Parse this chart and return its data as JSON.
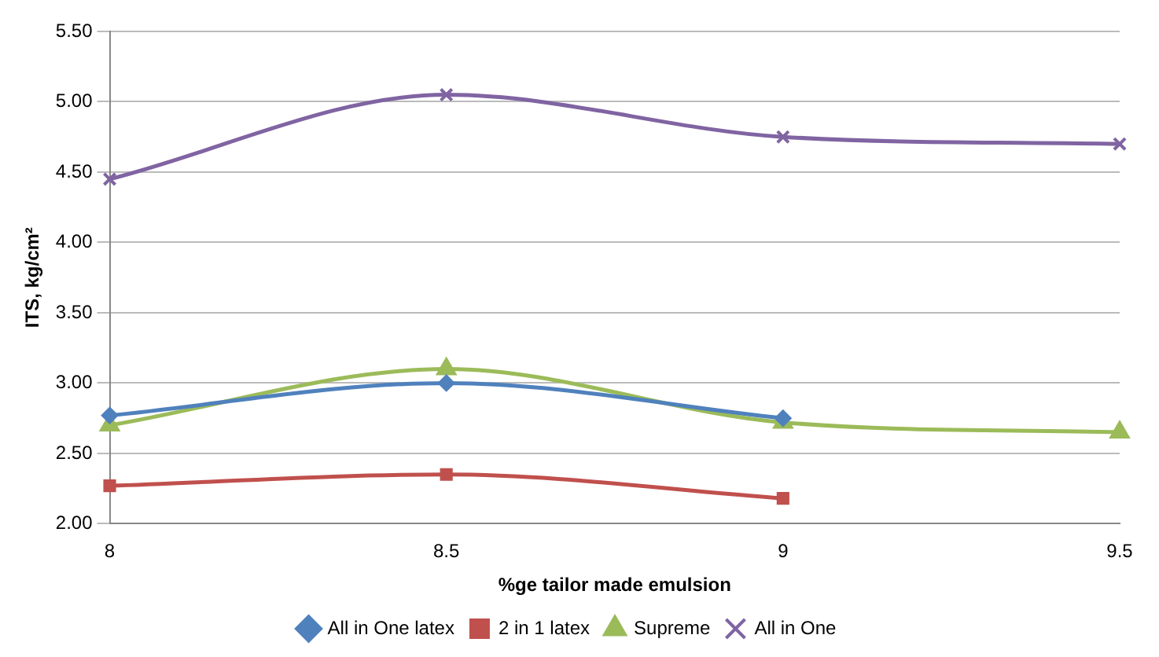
{
  "chart_data": {
    "type": "line",
    "xlabel": "%ge tailor made emulsion",
    "ylabel": "ITS, kg/cm²",
    "categories": [
      "8",
      "8.5",
      "9",
      "9.5"
    ],
    "ylim": [
      2,
      5.5
    ],
    "yticks": [
      {
        "value": 2,
        "label": "2.00"
      },
      {
        "value": 2.5,
        "label": "2.50"
      },
      {
        "value": 3,
        "label": "3.00"
      },
      {
        "value": 3.5,
        "label": "3.50"
      },
      {
        "value": 4,
        "label": "4.00"
      },
      {
        "value": 4.5,
        "label": "4.50"
      },
      {
        "value": 5,
        "label": "5.00"
      },
      {
        "value": 5.5,
        "label": "5.50"
      }
    ],
    "grid": "y",
    "legend": "bottom",
    "series": [
      {
        "name": "All in One latex",
        "color": "#4f81bd",
        "marker": "diamond",
        "values": [
          2.77,
          3.0,
          2.75,
          null
        ]
      },
      {
        "name": "2 in 1 latex",
        "color": "#c0504d",
        "marker": "square",
        "values": [
          2.27,
          2.35,
          2.18,
          null
        ]
      },
      {
        "name": "Supreme",
        "color": "#9bbb59",
        "marker": "triangle",
        "values": [
          2.7,
          3.1,
          2.72,
          2.65
        ]
      },
      {
        "name": "All in One",
        "color": "#8064a2",
        "marker": "cross",
        "values": [
          4.45,
          5.05,
          4.75,
          4.7
        ]
      }
    ]
  }
}
